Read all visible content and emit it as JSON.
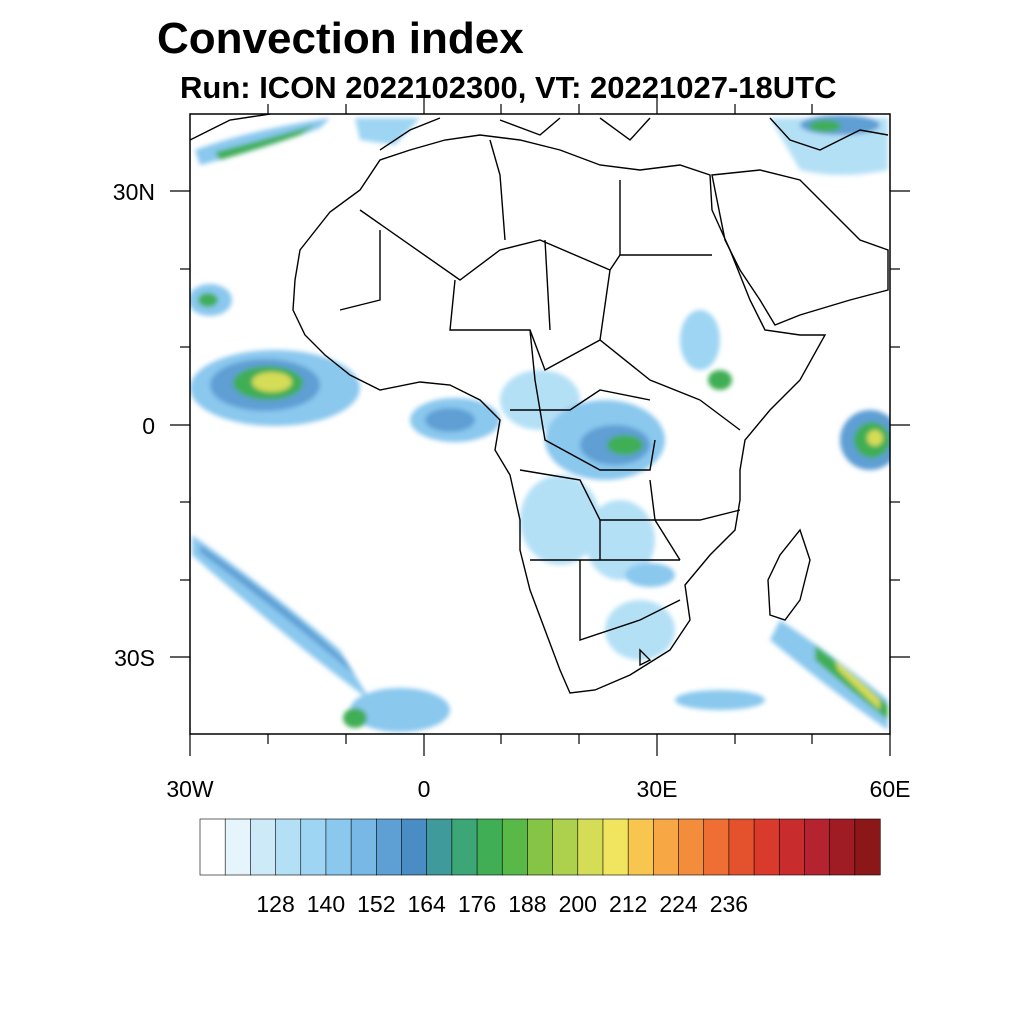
{
  "title": "Convection index",
  "subtitle": "Run: ICON 2022102300,  VT: 20221027-18UTC",
  "map": {
    "lat_ticks": [
      {
        "value": 30,
        "label": "30N"
      },
      {
        "value": 0,
        "label": "0"
      },
      {
        "value": -30,
        "label": "30S"
      }
    ],
    "lon_ticks": [
      {
        "value": -30,
        "label": "30W"
      },
      {
        "value": 0,
        "label": "0"
      },
      {
        "value": 30,
        "label": "30E"
      },
      {
        "value": 60,
        "label": "60E"
      }
    ]
  },
  "colorbar": {
    "labels": [
      "128",
      "140",
      "152",
      "164",
      "176",
      "188",
      "200",
      "212",
      "224",
      "236"
    ],
    "colors": [
      "#ffffff",
      "#e6f4fc",
      "#cdeaf9",
      "#b4e0f6",
      "#9dd5f3",
      "#8ac8ee",
      "#77b8e6",
      "#5e9fd4",
      "#4a8dc4",
      "#3f9b9b",
      "#3ca677",
      "#3fae55",
      "#58b947",
      "#86c446",
      "#aed14d",
      "#d5dc56",
      "#f1e45e",
      "#f8c54f",
      "#f7a844",
      "#f48d3b",
      "#ee6e33",
      "#e4522d",
      "#d93a2b",
      "#c82c2d",
      "#b52230",
      "#a01c25",
      "#8c1719"
    ]
  },
  "legend_colors": {
    "land_outline": "#000000",
    "frame": "#000000"
  }
}
